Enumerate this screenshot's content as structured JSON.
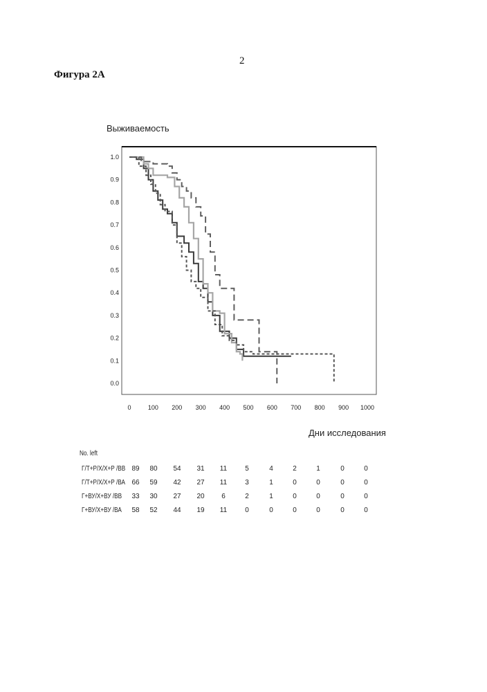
{
  "page": {
    "page_number": "2",
    "figure_title": "Фигура 2А"
  },
  "chart_data": {
    "type": "line",
    "title": "",
    "ylabel": "Выживаемость",
    "xlabel": "Дни исследования",
    "xlim": [
      0,
      1000
    ],
    "ylim": [
      0.0,
      1.0
    ],
    "x_ticks": [
      0,
      100,
      200,
      300,
      400,
      500,
      600,
      700,
      800,
      900,
      1000
    ],
    "y_ticks": [
      "0.0",
      "0.1",
      "0.2",
      "0.3",
      "0.4",
      "0.5",
      "0.6",
      "0.7",
      "0.8",
      "0.9",
      "1.0"
    ],
    "grid": false,
    "series": [
      {
        "color": "#3a3a3a",
        "dash": "solid",
        "points": [
          [
            0,
            1.0
          ],
          [
            30,
            0.99
          ],
          [
            60,
            0.95
          ],
          [
            80,
            0.9
          ],
          [
            100,
            0.85
          ],
          [
            120,
            0.81
          ],
          [
            140,
            0.77
          ],
          [
            160,
            0.75
          ],
          [
            180,
            0.71
          ],
          [
            200,
            0.65
          ],
          [
            230,
            0.62
          ],
          [
            250,
            0.58
          ],
          [
            270,
            0.53
          ],
          [
            290,
            0.45
          ],
          [
            310,
            0.42
          ],
          [
            330,
            0.36
          ],
          [
            350,
            0.3
          ],
          [
            380,
            0.23
          ],
          [
            420,
            0.2
          ],
          [
            450,
            0.15
          ],
          [
            480,
            0.12
          ],
          [
            520,
            0.12
          ],
          [
            600,
            0.12
          ],
          [
            680,
            0.12
          ]
        ]
      },
      {
        "color": "#a6a6a6",
        "dash": "solid",
        "points": [
          [
            0,
            1.0
          ],
          [
            60,
            0.97
          ],
          [
            80,
            0.95
          ],
          [
            100,
            0.92
          ],
          [
            160,
            0.91
          ],
          [
            190,
            0.87
          ],
          [
            210,
            0.82
          ],
          [
            230,
            0.78
          ],
          [
            250,
            0.71
          ],
          [
            270,
            0.64
          ],
          [
            290,
            0.55
          ],
          [
            310,
            0.44
          ],
          [
            330,
            0.4
          ],
          [
            350,
            0.32
          ],
          [
            380,
            0.31
          ],
          [
            400,
            0.22
          ],
          [
            430,
            0.18
          ],
          [
            450,
            0.14
          ],
          [
            465,
            0.13
          ],
          [
            475,
            0.1
          ]
        ]
      },
      {
        "color": "#5e5e5e",
        "dash": "long",
        "points": [
          [
            0,
            1.0
          ],
          [
            50,
            0.98
          ],
          [
            100,
            0.97
          ],
          [
            160,
            0.96
          ],
          [
            180,
            0.93
          ],
          [
            200,
            0.9
          ],
          [
            220,
            0.87
          ],
          [
            240,
            0.85
          ],
          [
            260,
            0.82
          ],
          [
            280,
            0.78
          ],
          [
            300,
            0.74
          ],
          [
            320,
            0.66
          ],
          [
            340,
            0.58
          ],
          [
            360,
            0.48
          ],
          [
            380,
            0.42
          ],
          [
            410,
            0.42
          ],
          [
            440,
            0.28
          ],
          [
            540,
            0.28
          ],
          [
            545,
            0.14
          ],
          [
            600,
            0.14
          ],
          [
            620,
            0.14
          ],
          [
            620,
            0.0
          ]
        ]
      },
      {
        "color": "#555555",
        "dash": "short",
        "points": [
          [
            0,
            1.0
          ],
          [
            40,
            0.96
          ],
          [
            70,
            0.92
          ],
          [
            90,
            0.88
          ],
          [
            110,
            0.84
          ],
          [
            130,
            0.79
          ],
          [
            150,
            0.76
          ],
          [
            180,
            0.7
          ],
          [
            200,
            0.62
          ],
          [
            220,
            0.56
          ],
          [
            240,
            0.5
          ],
          [
            260,
            0.45
          ],
          [
            280,
            0.42
          ],
          [
            300,
            0.38
          ],
          [
            330,
            0.32
          ],
          [
            360,
            0.26
          ],
          [
            390,
            0.21
          ],
          [
            420,
            0.19
          ],
          [
            450,
            0.17
          ],
          [
            480,
            0.14
          ],
          [
            520,
            0.13
          ],
          [
            600,
            0.13
          ],
          [
            700,
            0.13
          ],
          [
            860,
            0.13
          ],
          [
            860,
            0.0
          ]
        ]
      }
    ],
    "risk_table": {
      "title": "No. left",
      "columns": [
        "0",
        "100",
        "200",
        "300",
        "400",
        "500",
        "600",
        "700",
        "800",
        "900",
        "1000"
      ],
      "rows": [
        {
          "label": "Г/Т+Р/Х/Х+Р /ВВ",
          "values": [
            "89",
            "80",
            "54",
            "31",
            "11",
            "5",
            "4",
            "2",
            "1",
            "0",
            "0"
          ]
        },
        {
          "label": "Г/Т+Р/Х/Х+Р /ВА",
          "values": [
            "66",
            "59",
            "42",
            "27",
            "11",
            "3",
            "1",
            "0",
            "0",
            "0",
            "0"
          ]
        },
        {
          "label": "Г+ВУ/Х+ВУ /ВВ",
          "values": [
            "33",
            "30",
            "27",
            "20",
            "6",
            "2",
            "1",
            "0",
            "0",
            "0",
            "0"
          ]
        },
        {
          "label": "Г+ВУ/Х+ВУ /ВА",
          "values": [
            "58",
            "52",
            "44",
            "19",
            "11",
            "0",
            "0",
            "0",
            "0",
            "0",
            "0"
          ]
        }
      ]
    }
  }
}
